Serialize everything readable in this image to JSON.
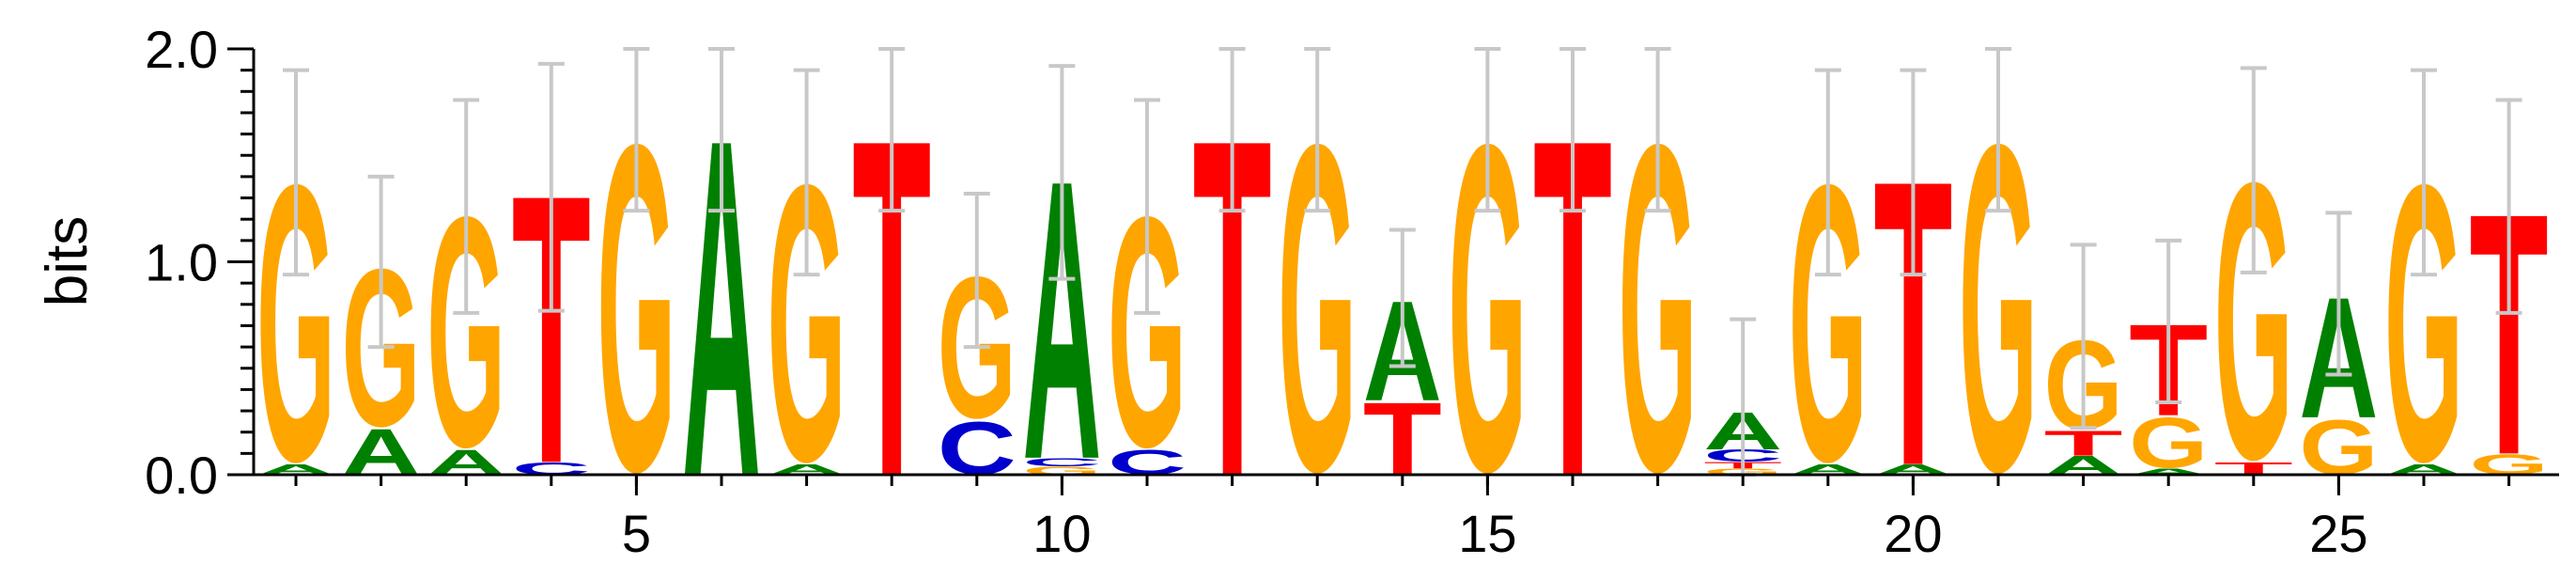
{
  "chart_data": {
    "type": "sequence-logo",
    "title": "",
    "xlabel": "",
    "ylabel": "bits",
    "ylim": [
      0,
      2
    ],
    "yticks": [
      "0.0",
      "1.0",
      "2.0"
    ],
    "xticks": [
      "5",
      "10",
      "15",
      "20",
      "25"
    ],
    "colors": {
      "A": "#008000",
      "C": "#0000cc",
      "G": "#ffa500",
      "T": "#ff0000"
    },
    "positions": [
      {
        "pos": 1,
        "stack": [
          [
            "A",
            0.05
          ],
          [
            "G",
            1.37
          ]
        ],
        "err": 0.48
      },
      {
        "pos": 2,
        "stack": [
          [
            "A",
            0.22
          ],
          [
            "G",
            0.78
          ]
        ],
        "err": 0.4
      },
      {
        "pos": 3,
        "stack": [
          [
            "A",
            0.12
          ],
          [
            "G",
            1.14
          ]
        ],
        "err": 0.5
      },
      {
        "pos": 4,
        "stack": [
          [
            "C",
            0.06
          ],
          [
            "T",
            1.29
          ]
        ],
        "err": 0.58
      },
      {
        "pos": 5,
        "stack": [
          [
            "G",
            1.62
          ]
        ],
        "err": 0.38
      },
      {
        "pos": 6,
        "stack": [
          [
            "A",
            1.62
          ]
        ],
        "err": 0.38
      },
      {
        "pos": 7,
        "stack": [
          [
            "A",
            0.05
          ],
          [
            "G",
            1.37
          ]
        ],
        "err": 0.48
      },
      {
        "pos": 8,
        "stack": [
          [
            "T",
            1.62
          ]
        ],
        "err": 0.38
      },
      {
        "pos": 9,
        "stack": [
          [
            "C",
            0.26
          ],
          [
            "G",
            0.7
          ]
        ],
        "err": 0.36
      },
      {
        "pos": 10,
        "stack": [
          [
            "G",
            0.04
          ],
          [
            "C",
            0.04
          ],
          [
            "A",
            1.34
          ]
        ],
        "err": 0.5
      },
      {
        "pos": 11,
        "stack": [
          [
            "C",
            0.12
          ],
          [
            "G",
            1.14
          ]
        ],
        "err": 0.5
      },
      {
        "pos": 12,
        "stack": [
          [
            "T",
            1.62
          ]
        ],
        "err": 0.38
      },
      {
        "pos": 13,
        "stack": [
          [
            "G",
            1.62
          ]
        ],
        "err": 0.38
      },
      {
        "pos": 14,
        "stack": [
          [
            "T",
            0.35
          ],
          [
            "A",
            0.48
          ]
        ],
        "err": 0.32
      },
      {
        "pos": 15,
        "stack": [
          [
            "G",
            1.62
          ]
        ],
        "err": 0.38
      },
      {
        "pos": 16,
        "stack": [
          [
            "T",
            1.62
          ]
        ],
        "err": 0.38
      },
      {
        "pos": 17,
        "stack": [
          [
            "G",
            1.62
          ]
        ],
        "err": 0.38
      },
      {
        "pos": 18,
        "stack": [
          [
            "G",
            0.03
          ],
          [
            "T",
            0.03
          ],
          [
            "C",
            0.06
          ],
          [
            "A",
            0.18
          ]
        ],
        "err": 0.43
      },
      {
        "pos": 19,
        "stack": [
          [
            "A",
            0.05
          ],
          [
            "G",
            1.37
          ]
        ],
        "err": 0.48
      },
      {
        "pos": 20,
        "stack": [
          [
            "A",
            0.05
          ],
          [
            "T",
            1.37
          ]
        ],
        "err": 0.48
      },
      {
        "pos": 21,
        "stack": [
          [
            "G",
            1.62
          ]
        ],
        "err": 0.38
      },
      {
        "pos": 22,
        "stack": [
          [
            "A",
            0.09
          ],
          [
            "T",
            0.12
          ],
          [
            "G",
            0.44
          ]
        ],
        "err": 0.43
      },
      {
        "pos": 23,
        "stack": [
          [
            "A",
            0.03
          ],
          [
            "G",
            0.25
          ],
          [
            "T",
            0.44
          ]
        ],
        "err": 0.38
      },
      {
        "pos": 24,
        "stack": [
          [
            "T",
            0.06
          ],
          [
            "G",
            1.37
          ]
        ],
        "err": 0.48
      },
      {
        "pos": 25,
        "stack": [
          [
            "G",
            0.27
          ],
          [
            "A",
            0.58
          ]
        ],
        "err": 0.38
      },
      {
        "pos": 26,
        "stack": [
          [
            "A",
            0.05
          ],
          [
            "G",
            1.37
          ]
        ],
        "err": 0.48
      },
      {
        "pos": 27,
        "stack": [
          [
            "G",
            0.1
          ],
          [
            "T",
            1.16
          ]
        ],
        "err": 0.5
      }
    ]
  }
}
